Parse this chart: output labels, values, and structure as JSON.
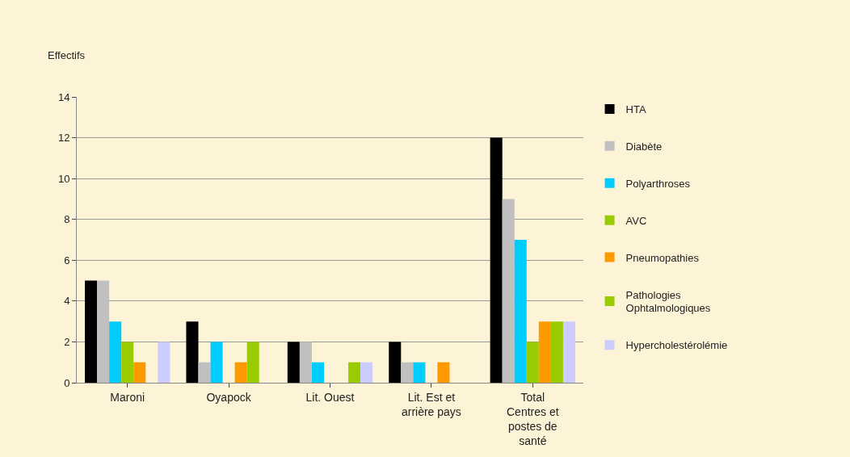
{
  "chart_data": {
    "type": "bar",
    "ylabel": "Effectifs",
    "categories": [
      "Maroni",
      "Oyapock",
      "Lit. Ouest",
      "Lit. Est et\narrière pays",
      "Total\nCentres et\npostes de\nsanté"
    ],
    "series": [
      {
        "name": "HTA",
        "color": "#000000",
        "values": [
          5,
          3,
          2,
          2,
          12
        ]
      },
      {
        "name": "Diabète",
        "color": "#c0c0c0",
        "values": [
          5,
          1,
          2,
          1,
          9
        ]
      },
      {
        "name": "Polyarthroses",
        "color": "#00ccff",
        "values": [
          3,
          2,
          1,
          1,
          7
        ]
      },
      {
        "name": "AVC",
        "color": "#99cc00",
        "values": [
          2,
          0,
          0,
          0,
          2
        ]
      },
      {
        "name": "Pneumopathies",
        "color": "#ff9900",
        "values": [
          1,
          1,
          0,
          1,
          3
        ]
      },
      {
        "name": "Pathologies\nOphtalmologiques",
        "color": "#99cc00",
        "values": [
          0,
          2,
          1,
          0,
          3
        ]
      },
      {
        "name": "Hypercholestérolémie",
        "color": "#ccccff",
        "values": [
          2,
          0,
          1,
          0,
          3
        ]
      }
    ],
    "ylim": [
      0,
      14
    ],
    "yticks": [
      0,
      2,
      4,
      6,
      8,
      10,
      12,
      14
    ],
    "grid": "y",
    "legend": "right"
  }
}
